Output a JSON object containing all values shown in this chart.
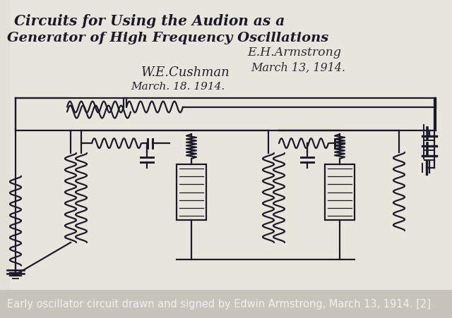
{
  "fig_width": 6.4,
  "fig_height": 4.51,
  "dpi": 100,
  "bg_color": "#c8c4bc",
  "paper_color_light": "#eceae4",
  "paper_color_mid": "#e4e1d8",
  "caption_bg": "#1c1c1c",
  "caption_text": "Early oscillator circuit drawn and signed by Edwin Armstrong, March 13, 1914. [2]",
  "caption_text_color": "#f0f0f0",
  "caption_fontsize": 10.5,
  "ink_color": "#1a1a2a",
  "title1": "Circuits for Using the Audion as a",
  "title2": "Generator of High Frequency Oscillations",
  "sig_armstrong_1": "E.H.Armstrong",
  "sig_armstrong_2": "March 13, 1914.",
  "sig_cushman_1": "W.E.Cushman",
  "sig_cushman_2": "March. 18. 1914."
}
